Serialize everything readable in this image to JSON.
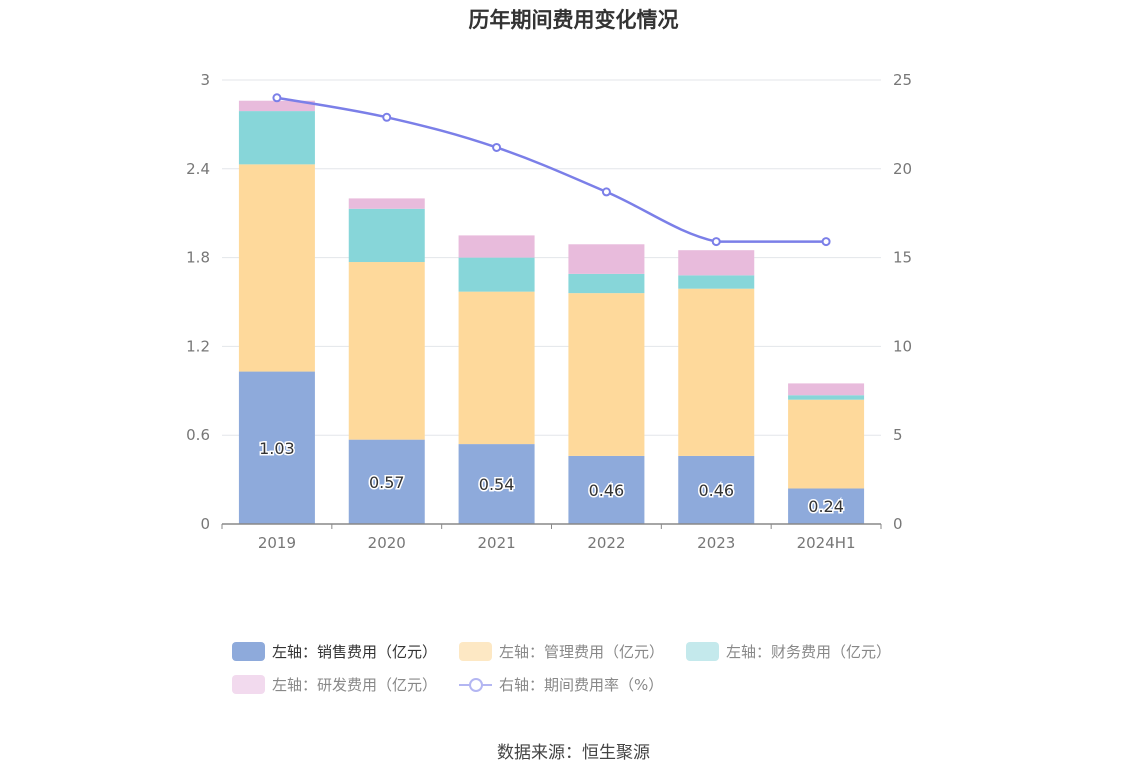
{
  "title": "历年期间费用变化情况",
  "source": "数据来源：恒生聚源",
  "chart_data": {
    "type": "bar",
    "stacked": true,
    "categories": [
      "2019",
      "2020",
      "2021",
      "2022",
      "2023",
      "2024H1"
    ],
    "left_axis": {
      "ticks": [
        "0",
        "0.6",
        "1.2",
        "1.8",
        "2.4",
        "3"
      ],
      "ylim": [
        0,
        3
      ]
    },
    "right_axis": {
      "ticks": [
        "0",
        "5",
        "10",
        "15",
        "20",
        "25"
      ],
      "ylim": [
        0,
        25
      ]
    },
    "grid": true,
    "series": [
      {
        "name": "左轴：销售费用（亿元）",
        "axis": "left",
        "type": "bar",
        "color": "#8eaadb",
        "values": [
          1.03,
          0.57,
          0.54,
          0.46,
          0.46,
          0.24
        ],
        "labels": [
          "1.03",
          "0.57",
          "0.54",
          "0.46",
          "0.46",
          "0.24"
        ]
      },
      {
        "name": "左轴：管理费用（亿元）",
        "axis": "left",
        "type": "bar",
        "color": "#fed99b",
        "values": [
          1.4,
          1.2,
          1.03,
          1.1,
          1.13,
          0.6
        ]
      },
      {
        "name": "左轴：财务费用（亿元）",
        "axis": "left",
        "type": "bar",
        "color": "#87d6d9",
        "values": [
          0.36,
          0.36,
          0.23,
          0.13,
          0.09,
          0.03
        ]
      },
      {
        "name": "左轴：研发费用（亿元）",
        "axis": "left",
        "type": "bar",
        "color": "#e8bbdc",
        "values": [
          0.07,
          0.07,
          0.15,
          0.2,
          0.17,
          0.08
        ]
      },
      {
        "name": "右轴：期间费用率（%）",
        "axis": "right",
        "type": "line",
        "color": "#7b7fe8",
        "values": [
          24.0,
          22.9,
          21.2,
          18.7,
          15.9,
          15.9
        ]
      }
    ],
    "legend_position": "bottom"
  },
  "legend": {
    "row1": [
      "左轴：销售费用（亿元）",
      "左轴：管理费用（亿元）",
      "左轴：财务费用（亿元）"
    ],
    "row2": [
      "左轴：研发费用（亿元）",
      "右轴：期间费用率（%）"
    ],
    "colors": [
      "#8eaadb",
      "#fde8c4",
      "#c4e9ec",
      "#f2daee"
    ]
  }
}
